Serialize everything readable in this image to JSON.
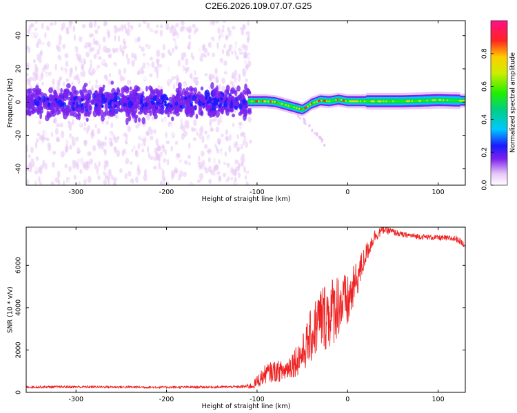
{
  "title": "C2E6.2026.109.07.07.G25",
  "chart_data": [
    {
      "type": "heatmap",
      "xlabel": "Height of straight line (km)",
      "ylabel": "Frequency (Hz)",
      "xlim": [
        -355,
        130
      ],
      "ylim": [
        -50,
        49
      ],
      "xticks": [
        -300,
        -200,
        -100,
        0,
        100
      ],
      "xtick_labels": [
        "-300",
        "-200",
        "-100",
        "0",
        "100"
      ],
      "yticks": [
        -40,
        -20,
        0,
        20,
        40
      ],
      "ytick_labels": [
        "-40",
        "-20",
        "0",
        "20",
        "40"
      ],
      "colorbar": {
        "label": "Normalized spectral amplitude",
        "range": [
          0,
          1
        ],
        "ticks": [
          0.0,
          0.2,
          0.4,
          0.6,
          0.8
        ],
        "tick_labels": [
          "0.0",
          "0.2",
          "0.4",
          "0.6",
          "0.8"
        ]
      },
      "regions": [
        {
          "name": "noise scatter",
          "x_range": [
            -355,
            -107
          ],
          "freq_range": [
            -50,
            49
          ],
          "amplitude": 0.1
        },
        {
          "name": "noise core band",
          "x_range": [
            -355,
            -107
          ],
          "freq_range": [
            -10,
            10
          ],
          "amplitude": 0.2
        },
        {
          "name": "carrier trace",
          "amplitude": 0.9,
          "x": [
            -110,
            -100,
            -90,
            -80,
            -70,
            -60,
            -50,
            -45,
            -40,
            -30,
            -20,
            -10,
            0,
            20,
            40,
            60,
            80,
            100,
            130
          ],
          "freq": [
            0.5,
            0.5,
            0.5,
            0.0,
            -1.5,
            -3.0,
            -4.5,
            -3.0,
            -1.0,
            1.0,
            0.5,
            1.5,
            0.5,
            0.5,
            0.5,
            0.5,
            0.8,
            1.2,
            0.8
          ]
        },
        {
          "name": "faint drift branch",
          "amplitude": 0.15,
          "x": [
            -60,
            -50,
            -40,
            -30,
            -25
          ],
          "freq": [
            -5,
            -10,
            -16,
            -22,
            -26
          ]
        }
      ]
    },
    {
      "type": "line",
      "xlabel": "Height of straight line (km)",
      "ylabel": "SNR (10 * v/v)",
      "xlim": [
        -355,
        130
      ],
      "ylim": [
        0,
        7800
      ],
      "xticks": [
        -300,
        -200,
        -100,
        0,
        100
      ],
      "xtick_labels": [
        "-300",
        "-200",
        "-100",
        "0",
        "100"
      ],
      "yticks": [
        0,
        2000,
        4000,
        6000
      ],
      "ytick_labels": [
        "0",
        "2000",
        "4000",
        "6000"
      ],
      "color": "#ee2222",
      "series": [
        {
          "name": "SNR",
          "x": [
            -355,
            -300,
            -250,
            -200,
            -150,
            -120,
            -105,
            -100,
            -90,
            -80,
            -70,
            -60,
            -50,
            -40,
            -30,
            -20,
            -10,
            0,
            10,
            20,
            30,
            40,
            60,
            80,
            100,
            120,
            130
          ],
          "values": [
            250,
            260,
            250,
            240,
            250,
            260,
            300,
            500,
            900,
            1000,
            1000,
            1400,
            1800,
            2700,
            3500,
            3700,
            4200,
            4200,
            5300,
            6500,
            7400,
            7700,
            7450,
            7350,
            7300,
            7250,
            6950
          ],
          "noise_amplitude": [
            60,
            60,
            60,
            60,
            60,
            60,
            150,
            300,
            450,
            500,
            500,
            700,
            900,
            1300,
            1600,
            1700,
            1600,
            1300,
            900,
            500,
            300,
            200,
            130,
            130,
            130,
            150,
            150
          ]
        }
      ]
    }
  ]
}
